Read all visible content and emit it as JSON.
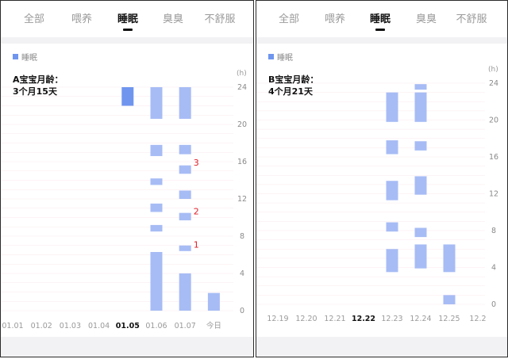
{
  "panels": [
    {
      "id": "A",
      "tabs": [
        {
          "label": "全部"
        },
        {
          "label": "喂养"
        },
        {
          "label": "睡眠",
          "active": true
        },
        {
          "label": "臭臭"
        },
        {
          "label": "不舒服"
        }
      ],
      "legend": "睡眠",
      "note_line1": "A宝宝月龄：",
      "note_line2": "3个月15天",
      "annotations": [
        {
          "text": "3",
          "date": "01.07",
          "hour": 15.9
        },
        {
          "text": "2",
          "date": "01.07",
          "hour": 10.7
        },
        {
          "text": "1",
          "date": "01.07",
          "hour": 7.1
        }
      ],
      "chart_data": {
        "type": "bar",
        "orientation": "floating-vertical",
        "unit": "(h)",
        "categories": [
          "01.01",
          "01.02",
          "01.03",
          "01.04",
          "01.05",
          "01.06",
          "01.07",
          "今日"
        ],
        "highlight_category": "01.05",
        "y_ticks": [
          0,
          4,
          8,
          12,
          16,
          20,
          24
        ],
        "ylim": [
          0,
          24
        ],
        "segments": [
          {
            "category": "01.05",
            "start": 22.0,
            "end": 24.0,
            "emphasis": true
          },
          {
            "category": "01.06",
            "start": 20.6,
            "end": 24.0
          },
          {
            "category": "01.06",
            "start": 16.6,
            "end": 17.8
          },
          {
            "category": "01.06",
            "start": 13.5,
            "end": 14.2
          },
          {
            "category": "01.06",
            "start": 10.6,
            "end": 11.5
          },
          {
            "category": "01.06",
            "start": 8.5,
            "end": 9.2
          },
          {
            "category": "01.06",
            "start": 0.0,
            "end": 6.3
          },
          {
            "category": "01.07",
            "start": 20.6,
            "end": 24.0
          },
          {
            "category": "01.07",
            "start": 16.8,
            "end": 17.8
          },
          {
            "category": "01.07",
            "start": 14.7,
            "end": 15.6
          },
          {
            "category": "01.07",
            "start": 12.0,
            "end": 12.9
          },
          {
            "category": "01.07",
            "start": 9.7,
            "end": 10.5
          },
          {
            "category": "01.07",
            "start": 6.4,
            "end": 7.0
          },
          {
            "category": "01.07",
            "start": 0.0,
            "end": 4.0
          },
          {
            "category": "今日",
            "start": 0.0,
            "end": 1.9
          }
        ]
      }
    },
    {
      "id": "B",
      "tabs": [
        {
          "label": "全部"
        },
        {
          "label": "喂养"
        },
        {
          "label": "睡眠",
          "active": true
        },
        {
          "label": "臭臭"
        },
        {
          "label": "不舒服"
        }
      ],
      "legend": "睡眠",
      "note_line1": "B宝宝月龄：",
      "note_line2": "4个月21天",
      "annotations": [],
      "chart_data": {
        "type": "bar",
        "orientation": "floating-vertical",
        "unit": "(h)",
        "categories": [
          "12.19",
          "12.20",
          "12.21",
          "12.22",
          "12.23",
          "12.24",
          "12.25",
          "12.2"
        ],
        "highlight_category": "12.22",
        "y_ticks": [
          0,
          4,
          8,
          12,
          16,
          20,
          24
        ],
        "ylim": [
          0,
          24
        ],
        "segments": [
          {
            "category": "12.23",
            "start": 19.8,
            "end": 23.0
          },
          {
            "category": "12.23",
            "start": 16.3,
            "end": 17.8
          },
          {
            "category": "12.23",
            "start": 11.3,
            "end": 13.4
          },
          {
            "category": "12.23",
            "start": 7.9,
            "end": 8.9
          },
          {
            "category": "12.23",
            "start": 3.5,
            "end": 6.0
          },
          {
            "category": "12.24",
            "start": 23.3,
            "end": 23.9
          },
          {
            "category": "12.24",
            "start": 19.8,
            "end": 23.0
          },
          {
            "category": "12.24",
            "start": 16.7,
            "end": 17.7
          },
          {
            "category": "12.24",
            "start": 11.9,
            "end": 13.9
          },
          {
            "category": "12.24",
            "start": 7.3,
            "end": 8.3
          },
          {
            "category": "12.24",
            "start": 3.9,
            "end": 6.5
          },
          {
            "category": "12.25",
            "start": 3.5,
            "end": 6.5
          },
          {
            "category": "12.25",
            "start": 0.0,
            "end": 1.0
          }
        ]
      }
    }
  ]
}
